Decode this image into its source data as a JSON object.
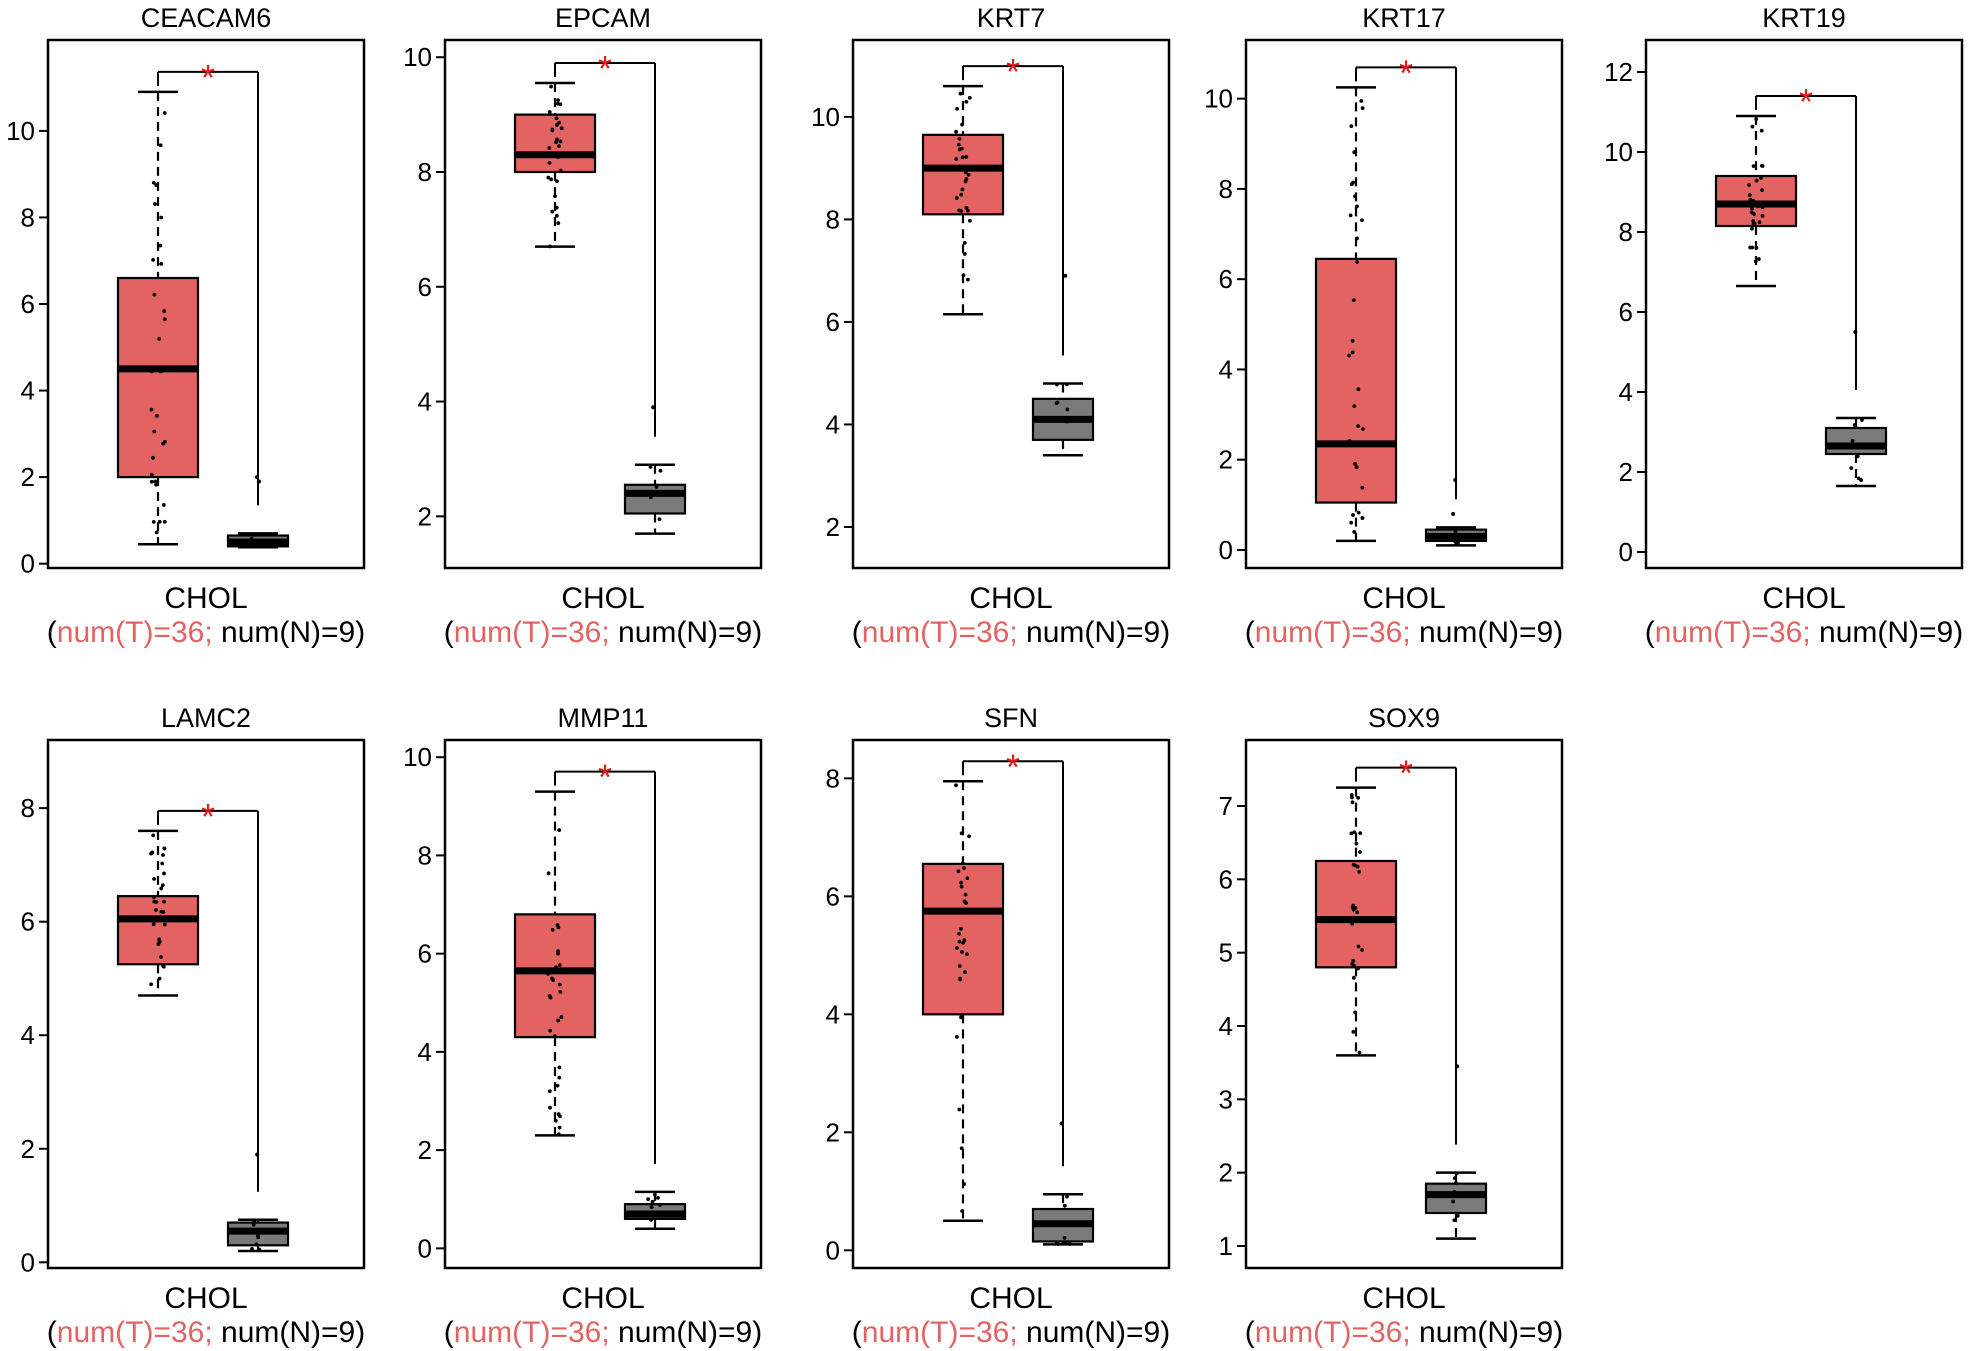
{
  "colors": {
    "tumor": "#E36262",
    "normal": "#7A7A7A",
    "star": "#E41A1C",
    "tumor_text": "#E36262",
    "ink": "#000000"
  },
  "annotation": {
    "significance": "*",
    "category": "CHOL",
    "open_paren": "(",
    "count_tumor": "num(T)=36;",
    "count_normal": " num(N)=9)"
  },
  "chart_data": [
    {
      "type": "box",
      "title": "CEACAM6",
      "category": "CHOL",
      "ylim": [
        -0.1,
        12.1
      ],
      "yticks": [
        0,
        2,
        4,
        6,
        8,
        10
      ],
      "tumor": {
        "min": 0.45,
        "q1": 2.0,
        "median": 4.5,
        "q3": 6.6,
        "max": 10.9
      },
      "normal": {
        "min": 0.38,
        "q1": 0.4,
        "median": 0.5,
        "q3": 0.65,
        "max": 0.7,
        "outliers": [
          1.9,
          2.0
        ]
      }
    },
    {
      "type": "box",
      "title": "EPCAM",
      "category": "CHOL",
      "ylim": [
        1.1,
        10.3
      ],
      "yticks": [
        2,
        4,
        6,
        8,
        10
      ],
      "tumor": {
        "min": 6.7,
        "q1": 8.0,
        "median": 8.3,
        "q3": 9.0,
        "max": 9.55
      },
      "normal": {
        "min": 1.7,
        "q1": 2.05,
        "median": 2.4,
        "q3": 2.55,
        "max": 2.9,
        "outliers": [
          3.9
        ]
      }
    },
    {
      "type": "box",
      "title": "KRT7",
      "category": "CHOL",
      "ylim": [
        1.2,
        11.5
      ],
      "yticks": [
        2,
        4,
        6,
        8,
        10
      ],
      "tumor": {
        "min": 6.15,
        "q1": 8.1,
        "median": 9.0,
        "q3": 9.65,
        "max": 10.6
      },
      "normal": {
        "min": 3.4,
        "q1": 3.7,
        "median": 4.1,
        "q3": 4.5,
        "max": 4.8,
        "outliers": [
          6.9
        ]
      }
    },
    {
      "type": "box",
      "title": "KRT17",
      "category": "CHOL",
      "ylim": [
        -0.4,
        11.3
      ],
      "yticks": [
        0,
        2,
        4,
        6,
        8,
        10
      ],
      "tumor": {
        "min": 0.2,
        "q1": 1.05,
        "median": 2.35,
        "q3": 6.45,
        "max": 10.25
      },
      "normal": {
        "min": 0.1,
        "q1": 0.2,
        "median": 0.3,
        "q3": 0.45,
        "max": 0.5,
        "outliers": [
          0.8,
          1.55
        ]
      }
    },
    {
      "type": "box",
      "title": "KRT19",
      "category": "CHOL",
      "ylim": [
        -0.4,
        12.8
      ],
      "yticks": [
        0,
        2,
        4,
        6,
        8,
        10,
        12
      ],
      "tumor": {
        "min": 6.65,
        "q1": 8.15,
        "median": 8.7,
        "q3": 9.4,
        "max": 10.9
      },
      "normal": {
        "min": 1.65,
        "q1": 2.45,
        "median": 2.65,
        "q3": 3.1,
        "max": 3.35,
        "outliers": [
          5.5
        ]
      }
    },
    {
      "type": "box",
      "title": "LAMC2",
      "category": "CHOL",
      "ylim": [
        -0.1,
        9.2
      ],
      "yticks": [
        0,
        2,
        4,
        6,
        8
      ],
      "tumor": {
        "min": 4.7,
        "q1": 5.25,
        "median": 6.05,
        "q3": 6.45,
        "max": 7.6
      },
      "normal": {
        "min": 0.2,
        "q1": 0.3,
        "median": 0.55,
        "q3": 0.7,
        "max": 0.75,
        "outliers": [
          1.9
        ]
      }
    },
    {
      "type": "box",
      "title": "MMP11",
      "category": "CHOL",
      "ylim": [
        -0.4,
        10.35
      ],
      "yticks": [
        0,
        2,
        4,
        6,
        8,
        10
      ],
      "tumor": {
        "min": 2.3,
        "q1": 4.3,
        "median": 5.65,
        "q3": 6.8,
        "max": 9.3
      },
      "normal": {
        "min": 0.4,
        "q1": 0.6,
        "median": 0.7,
        "q3": 0.9,
        "max": 1.15
      }
    },
    {
      "type": "box",
      "title": "SFN",
      "category": "CHOL",
      "ylim": [
        -0.3,
        8.65
      ],
      "yticks": [
        0,
        2,
        4,
        6,
        8
      ],
      "tumor": {
        "min": 0.5,
        "q1": 4.0,
        "median": 5.75,
        "q3": 6.55,
        "max": 7.95
      },
      "normal": {
        "min": 0.1,
        "q1": 0.15,
        "median": 0.45,
        "q3": 0.7,
        "max": 0.95,
        "outliers": [
          2.15
        ]
      }
    },
    {
      "type": "box",
      "title": "SOX9",
      "category": "CHOL",
      "ylim": [
        0.7,
        7.9
      ],
      "yticks": [
        1,
        2,
        3,
        4,
        5,
        6,
        7
      ],
      "tumor": {
        "min": 3.6,
        "q1": 4.8,
        "median": 5.45,
        "q3": 6.25,
        "max": 7.25
      },
      "normal": {
        "min": 1.1,
        "q1": 1.45,
        "median": 1.7,
        "q3": 1.85,
        "max": 2.0,
        "outliers": [
          3.45
        ]
      }
    }
  ]
}
